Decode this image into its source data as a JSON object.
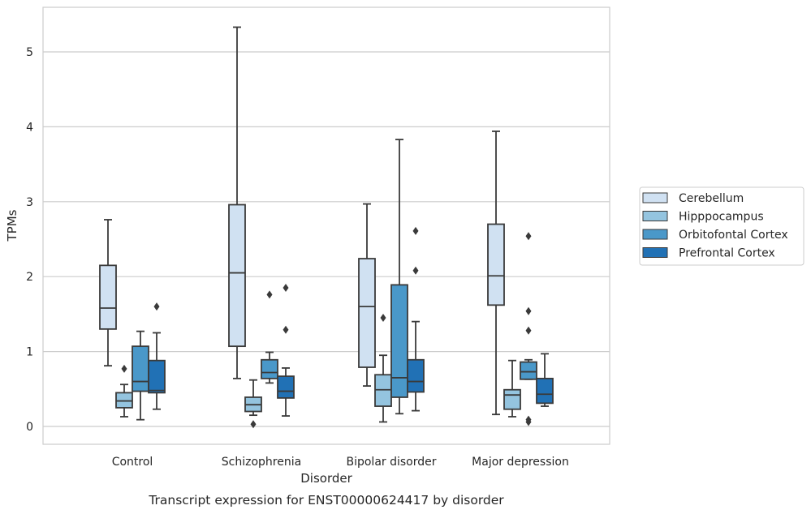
{
  "chart_data": {
    "type": "box",
    "title": "",
    "caption": "Transcript expression for ENST00000624417 by disorder",
    "xlabel": "Disorder",
    "ylabel": "TPMs",
    "ylim": [
      -0.23,
      5.6
    ],
    "yticks": [
      0,
      1,
      2,
      3,
      4,
      5
    ],
    "grid": "horizontal",
    "legend_position": "right",
    "categories": [
      "Control",
      "Schizophrenia",
      "Bipolar disorder",
      "Major depression"
    ],
    "series": [
      {
        "name": "Cerebellum",
        "color": "#d0e1f2",
        "boxes": [
          {
            "whislo": 0.81,
            "q1": 1.3,
            "med": 1.58,
            "q3": 2.15,
            "whishi": 2.76,
            "fliers": []
          },
          {
            "whislo": 0.64,
            "q1": 1.07,
            "med": 2.05,
            "q3": 2.96,
            "whishi": 5.33,
            "fliers": []
          },
          {
            "whislo": 0.54,
            "q1": 0.79,
            "med": 1.6,
            "q3": 2.24,
            "whishi": 2.97,
            "fliers": []
          },
          {
            "whislo": 0.16,
            "q1": 1.62,
            "med": 2.01,
            "q3": 2.7,
            "whishi": 3.94,
            "fliers": []
          }
        ]
      },
      {
        "name": "Hipppocampus",
        "color": "#94c4df",
        "boxes": [
          {
            "whislo": 0.13,
            "q1": 0.25,
            "med": 0.34,
            "q3": 0.45,
            "whishi": 0.56,
            "fliers": [
              0.77
            ]
          },
          {
            "whislo": 0.15,
            "q1": 0.2,
            "med": 0.29,
            "q3": 0.39,
            "whishi": 0.62,
            "fliers": [
              0.03
            ]
          },
          {
            "whislo": 0.06,
            "q1": 0.27,
            "med": 0.49,
            "q3": 0.69,
            "whishi": 0.95,
            "fliers": [
              1.45
            ]
          },
          {
            "whislo": 0.13,
            "q1": 0.23,
            "med": 0.42,
            "q3": 0.49,
            "whishi": 0.88,
            "fliers": []
          }
        ]
      },
      {
        "name": "Orbitofontal Cortex",
        "color": "#4a98c9",
        "boxes": [
          {
            "whislo": 0.09,
            "q1": 0.47,
            "med": 0.6,
            "q3": 1.07,
            "whishi": 1.27,
            "fliers": []
          },
          {
            "whislo": 0.58,
            "q1": 0.64,
            "med": 0.72,
            "q3": 0.89,
            "whishi": 0.99,
            "fliers": [
              1.76
            ]
          },
          {
            "whislo": 0.17,
            "q1": 0.39,
            "med": 0.65,
            "q3": 1.89,
            "whishi": 3.83,
            "fliers": []
          },
          {
            "whislo": 0.63,
            "q1": 0.63,
            "med": 0.73,
            "q3": 0.86,
            "whishi": 0.89,
            "fliers": [
              2.54,
              1.54,
              1.28,
              0.09,
              0.06
            ]
          }
        ]
      },
      {
        "name": "Prefrontal Cortex",
        "color": "#2171b5",
        "boxes": [
          {
            "whislo": 0.23,
            "q1": 0.45,
            "med": 0.48,
            "q3": 0.88,
            "whishi": 1.25,
            "fliers": [
              1.6
            ]
          },
          {
            "whislo": 0.14,
            "q1": 0.38,
            "med": 0.47,
            "q3": 0.67,
            "whishi": 0.78,
            "fliers": [
              1.85,
              1.29
            ]
          },
          {
            "whislo": 0.21,
            "q1": 0.46,
            "med": 0.6,
            "q3": 0.89,
            "whishi": 1.4,
            "fliers": [
              2.61,
              2.08
            ]
          },
          {
            "whislo": 0.27,
            "q1": 0.31,
            "med": 0.43,
            "q3": 0.64,
            "whishi": 0.97,
            "fliers": []
          }
        ]
      }
    ]
  }
}
